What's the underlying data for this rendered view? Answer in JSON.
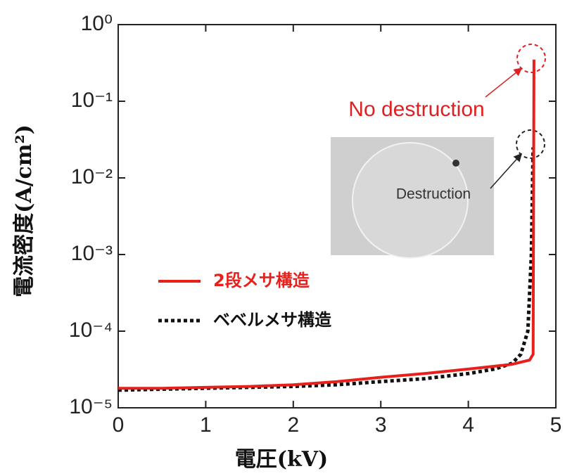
{
  "chart_data": {
    "type": "line",
    "x_label": "電圧(kV)",
    "y_label": "電流密度(A/cm²)",
    "annotations": [
      "No destruction",
      "Destruction"
    ],
    "xlim": [
      0,
      5
    ],
    "xticks": [
      0,
      1,
      2,
      3,
      4,
      5
    ],
    "ylim": [
      1e-05,
      1
    ],
    "yscale": "log",
    "yticks": [
      {
        "value": 1,
        "label": "10⁰"
      },
      {
        "value": 0.1,
        "label": "10⁻¹"
      },
      {
        "value": 0.01,
        "label": "10⁻²"
      },
      {
        "value": 0.001,
        "label": "10⁻³"
      },
      {
        "value": 0.0001,
        "label": "10⁻⁴"
      },
      {
        "value": 1e-05,
        "label": "10⁻⁵"
      }
    ],
    "series": [
      {
        "name": "2段メサ構造",
        "color": "#e8201c",
        "style": "solid",
        "x": [
          0,
          0.5,
          1,
          1.5,
          2,
          2.5,
          3,
          3.5,
          4,
          4.5,
          4.7,
          4.74,
          4.75
        ],
        "values": [
          1.8e-05,
          1.8e-05,
          1.85e-05,
          1.9e-05,
          2e-05,
          2.2e-05,
          2.5e-05,
          2.8e-05,
          3.2e-05,
          3.7e-05,
          4.2e-05,
          5e-05,
          0.35
        ]
      },
      {
        "name": "ベベルメサ構造",
        "color": "#111111",
        "style": "dotted",
        "x": [
          0,
          0.5,
          1,
          1.5,
          2,
          2.5,
          3,
          3.5,
          4,
          4.3,
          4.5,
          4.6,
          4.68,
          4.72,
          4.74
        ],
        "values": [
          1.7e-05,
          1.75e-05,
          1.8e-05,
          1.85e-05,
          1.9e-05,
          2e-05,
          2.2e-05,
          2.4e-05,
          2.8e-05,
          3.2e-05,
          3.8e-05,
          5e-05,
          0.0001,
          0.001,
          0.025
        ]
      }
    ]
  }
}
